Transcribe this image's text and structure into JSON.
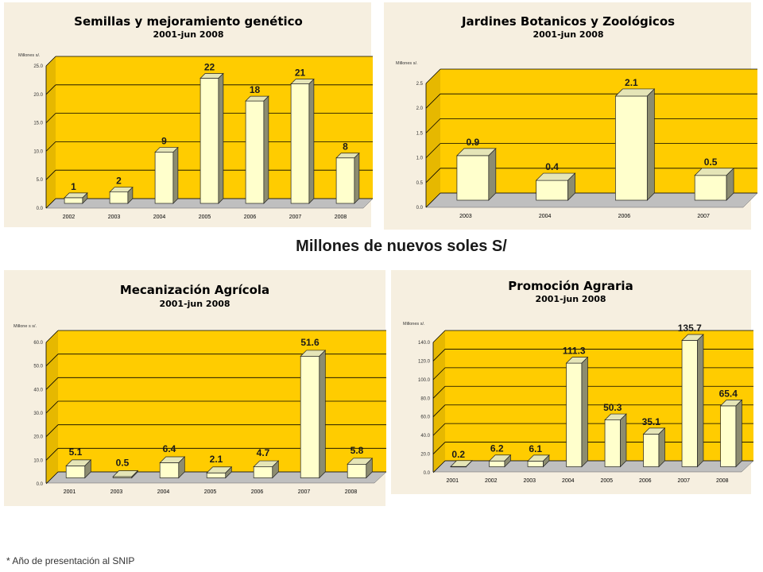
{
  "page_title": "Millones de nuevos soles S/",
  "footnote": "* Año de presentación al SNIP",
  "colors": {
    "plot_back": "#ffcc00",
    "floor": "#bfbfbf",
    "bar_front": "#ffffcc",
    "bar_top": "#e5e5b7",
    "bar_side": "#8c8c70",
    "panel_bg": "#f6efe0"
  },
  "chart_data": [
    {
      "type": "bar",
      "title": "Semillas y mejoramiento genético",
      "subtitle": "2001-jun 2008",
      "ylabel": "Millones s/.",
      "ylim": [
        0,
        25
      ],
      "ytick_labels": [
        "0.0",
        "5.0",
        "10.0",
        "15.0",
        "20.0",
        "25.0"
      ],
      "categories": [
        "2002",
        "2003",
        "2004",
        "2005",
        "2006",
        "2007",
        "2008"
      ],
      "values": [
        1,
        2,
        9,
        22,
        18,
        21,
        8
      ],
      "labels": [
        "1",
        "2",
        "9",
        "22",
        "18",
        "21",
        "8"
      ],
      "grid": true
    },
    {
      "type": "bar",
      "title": "Jardines Botanicos y Zoológicos",
      "subtitle": "2001-jun 2008",
      "ylabel": "Millones s/.",
      "ylim": [
        0,
        2.5
      ],
      "ytick_labels": [
        "0.0",
        "0.5",
        "1.0",
        "1.5",
        "2.0",
        "2.5"
      ],
      "categories": [
        "2003",
        "2004",
        "2006",
        "2007"
      ],
      "values": [
        0.9,
        0.4,
        2.1,
        0.5
      ],
      "labels": [
        "0.9",
        "0.4",
        "2.1",
        "0.5"
      ],
      "grid": true
    },
    {
      "type": "bar",
      "title": "Mecanización Agrícola",
      "subtitle": "2001-jun 2008",
      "ylabel": "Millone s s/.",
      "ylim": [
        0,
        60
      ],
      "ytick_labels": [
        "0.0",
        "10.0",
        "20.0",
        "30.0",
        "40.0",
        "50.0",
        "60.0"
      ],
      "categories": [
        "2001",
        "2003",
        "2004",
        "2005",
        "2006",
        "2007",
        "2008"
      ],
      "values": [
        5.1,
        0.5,
        6.4,
        2.1,
        4.7,
        51.6,
        5.8
      ],
      "labels": [
        "5.1",
        "0.5",
        "6.4",
        "2.1",
        "4.7",
        "51.6",
        "5.8"
      ],
      "grid": true
    },
    {
      "type": "bar",
      "title": "Promoción Agraria",
      "subtitle": "2001-jun 2008",
      "ylabel": "Millones s/.",
      "ylim": [
        0,
        140
      ],
      "ytick_labels": [
        "0.0",
        "20.0",
        "40.0",
        "60.0",
        "80.0",
        "100.0",
        "120.0",
        "140.0"
      ],
      "categories": [
        "2001",
        "2002",
        "2003",
        "2004",
        "2005",
        "2006",
        "2007",
        "2008"
      ],
      "values": [
        0.2,
        6.2,
        6.1,
        111.3,
        50.3,
        35.1,
        135.7,
        65.4
      ],
      "labels": [
        "0.2",
        "6.2",
        "6.1",
        "111.3",
        "50.3",
        "35.1",
        "135.7",
        "65.4"
      ],
      "grid": true
    }
  ]
}
